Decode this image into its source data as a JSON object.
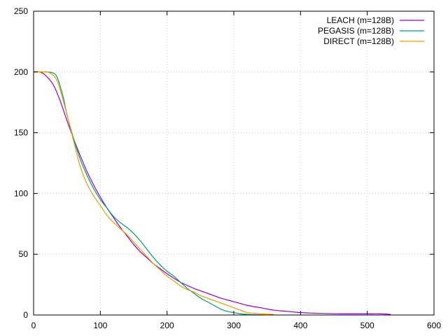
{
  "chart_data": {
    "type": "line",
    "title": "",
    "xlabel": "",
    "ylabel": "",
    "xlim": [
      0,
      600
    ],
    "ylim": [
      0,
      250
    ],
    "xticks": [
      0,
      100,
      200,
      300,
      400,
      500,
      600
    ],
    "yticks": [
      0,
      50,
      100,
      150,
      200,
      250
    ],
    "grid": true,
    "legend_position": "top-right",
    "series": [
      {
        "name": "LEACH (m=128B)",
        "color": "#9400d3",
        "x": [
          0,
          10,
          20,
          30,
          40,
          50,
          60,
          70,
          80,
          90,
          100,
          110,
          120,
          130,
          140,
          150,
          160,
          170,
          180,
          190,
          200,
          220,
          240,
          260,
          280,
          300,
          320,
          340,
          360,
          380,
          400,
          420,
          440,
          460,
          480,
          500,
          520,
          535
        ],
        "values": [
          200,
          200,
          196,
          189,
          176,
          160,
          145,
          131,
          118,
          107,
          97,
          88,
          80,
          72,
          65,
          58,
          52,
          47,
          42,
          38,
          34,
          27,
          22,
          18,
          14,
          11,
          8,
          6,
          4,
          3,
          2,
          1.5,
          1.2,
          1,
          1,
          1,
          1,
          0.5
        ]
      },
      {
        "name": "PEGASIS (m=128B)",
        "color": "#009e73",
        "x": [
          0,
          20,
          30,
          35,
          40,
          45,
          50,
          60,
          70,
          80,
          90,
          100,
          110,
          120,
          130,
          140,
          150,
          160,
          170,
          180,
          190,
          200,
          210,
          220,
          230,
          240,
          250,
          260,
          270,
          280,
          290,
          300,
          310,
          320,
          330,
          345
        ],
        "values": [
          200,
          200,
          199,
          196,
          188,
          178,
          165,
          145,
          128,
          115,
          104,
          95,
          88,
          81,
          76,
          72,
          67,
          61,
          54,
          47,
          41,
          36,
          32,
          27,
          22,
          18,
          14,
          11,
          8,
          5,
          3,
          2,
          1,
          0.5,
          0.3,
          0
        ]
      },
      {
        "name": "DIRECT (m=128B)",
        "color": "#e69f00",
        "x": [
          0,
          20,
          30,
          35,
          40,
          50,
          60,
          70,
          80,
          90,
          100,
          110,
          120,
          130,
          140,
          150,
          160,
          170,
          180,
          190,
          200,
          210,
          220,
          230,
          240,
          250,
          260,
          270,
          280,
          290,
          300,
          310,
          320,
          330,
          340,
          360
        ],
        "values": [
          200,
          200,
          197,
          193,
          185,
          165,
          143,
          122,
          108,
          98,
          90,
          82,
          76,
          71,
          66,
          60,
          54,
          48,
          42,
          37,
          32,
          28,
          24,
          21,
          19,
          16,
          14,
          12,
          10,
          8,
          6,
          4,
          2,
          1.5,
          1,
          0.5
        ]
      }
    ]
  }
}
